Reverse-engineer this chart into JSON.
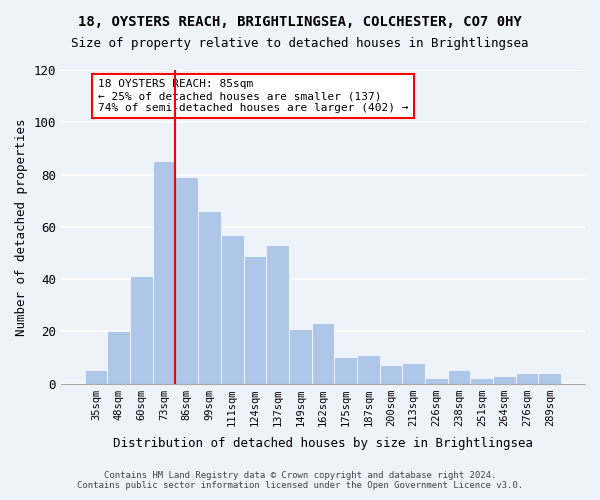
{
  "title": "18, OYSTERS REACH, BRIGHTLINGSEA, COLCHESTER, CO7 0HY",
  "subtitle": "Size of property relative to detached houses in Brightlingsea",
  "xlabel": "Distribution of detached houses by size in Brightlingsea",
  "ylabel": "Number of detached properties",
  "categories": [
    "35sqm",
    "48sqm",
    "60sqm",
    "73sqm",
    "86sqm",
    "99sqm",
    "111sqm",
    "124sqm",
    "137sqm",
    "149sqm",
    "162sqm",
    "175sqm",
    "187sqm",
    "200sqm",
    "213sqm",
    "226sqm",
    "238sqm",
    "251sqm",
    "264sqm",
    "276sqm",
    "289sqm"
  ],
  "values": [
    5,
    20,
    41,
    85,
    79,
    66,
    57,
    49,
    53,
    21,
    23,
    10,
    11,
    7,
    8,
    2,
    5,
    2,
    3,
    4,
    4
  ],
  "bar_color": "#aec6e8",
  "vline_color": "red",
  "annotation_title": "18 OYSTERS REACH: 85sqm",
  "annotation_line1": "← 25% of detached houses are smaller (137)",
  "annotation_line2": "74% of semi-detached houses are larger (402) →",
  "annotation_box_color": "white",
  "annotation_box_edge": "red",
  "ylim": [
    0,
    120
  ],
  "yticks": [
    0,
    20,
    40,
    60,
    80,
    100,
    120
  ],
  "footer1": "Contains HM Land Registry data © Crown copyright and database right 2024.",
  "footer2": "Contains public sector information licensed under the Open Government Licence v3.0.",
  "bg_color": "#eef2f9",
  "plot_bg_color": "#eef2f9",
  "vline_x": 3.5
}
